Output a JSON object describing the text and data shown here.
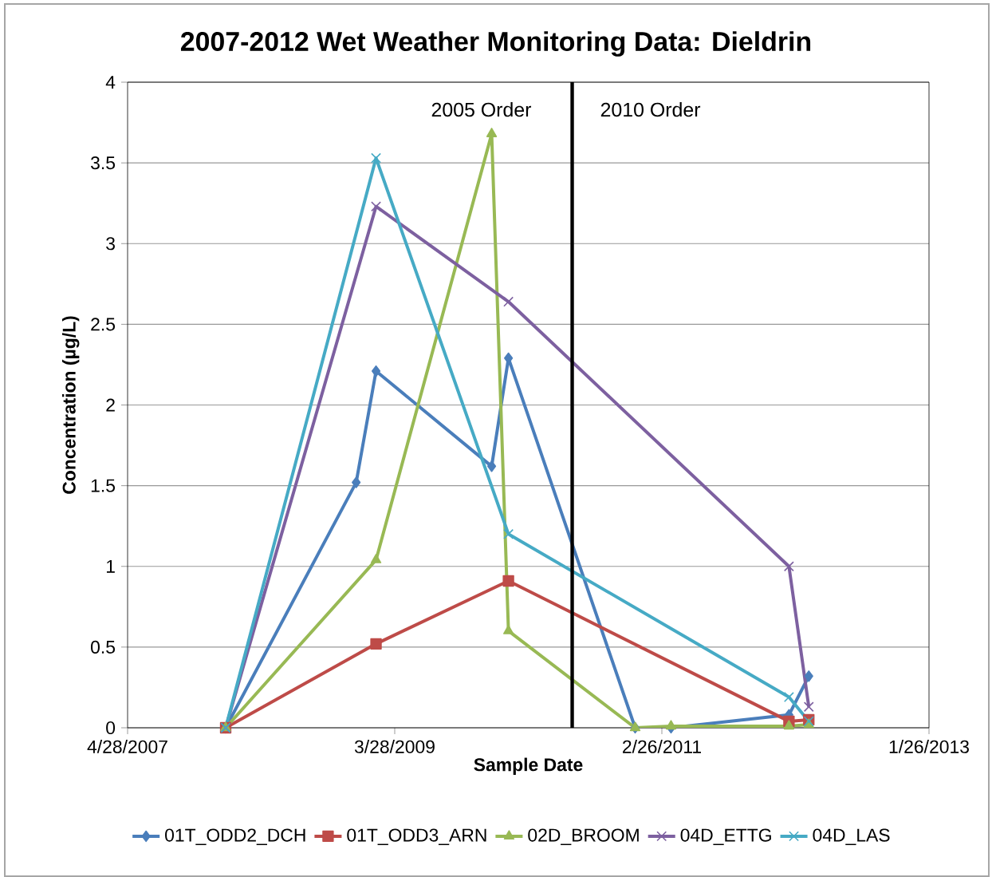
{
  "chart_data": {
    "type": "line",
    "title": "2007-2012 Wet Weather Monitoring Data: Dieldrin",
    "xlabel": "Sample Date",
    "ylabel": "Concentration (µg/L)",
    "xlim": [
      "2007-04-28",
      "2013-01-26"
    ],
    "xticks": [
      {
        "value": "2007-04-28",
        "label": "4/28/2007"
      },
      {
        "value": "2009-03-28",
        "label": "3/28/2009"
      },
      {
        "value": "2011-02-26",
        "label": "2/26/2011"
      },
      {
        "value": "2013-01-26",
        "label": "1/26/2013"
      }
    ],
    "ylim": [
      0,
      4
    ],
    "yticks": [
      0,
      0.5,
      1,
      1.5,
      2,
      2.5,
      3,
      3.5,
      4
    ],
    "grid": "y",
    "legend": "bottom",
    "ref_lines": [
      {
        "axis": "x",
        "value": "2010-07-06",
        "color": "#000000"
      }
    ],
    "annotations": [
      "2005 Order",
      "2010 Order"
    ],
    "series": [
      {
        "name": "01T_ODD2_DCH",
        "color": "#4a7ebb",
        "marker": "diamond",
        "x": [
          "2008-01-10",
          "2008-12-17",
          "2009-02-07",
          "2009-12-07",
          "2010-01-20",
          "2010-12-18",
          "2011-03-22",
          "2012-01-25",
          "2012-03-17"
        ],
        "values": [
          0,
          1.52,
          2.21,
          1.62,
          2.29,
          0,
          0,
          0.08,
          0.32
        ]
      },
      {
        "name": "01T_ODD3_ARN",
        "color": "#be4b48",
        "marker": "square",
        "x": [
          "2008-01-10",
          "2009-02-07",
          "2010-01-20",
          "2012-01-25",
          "2012-03-17"
        ],
        "values": [
          0,
          0.52,
          0.91,
          0.04,
          0.05
        ]
      },
      {
        "name": "02D_BROOM",
        "color": "#98b954",
        "marker": "triangle",
        "x": [
          "2008-01-10",
          "2009-02-07",
          "2009-12-07",
          "2010-01-20",
          "2010-12-18",
          "2011-03-22",
          "2012-01-25",
          "2012-03-17"
        ],
        "values": [
          0,
          1.04,
          3.68,
          0.6,
          0,
          0.01,
          0.01,
          0.02
        ]
      },
      {
        "name": "04D_ETTG",
        "color": "#7d60a0",
        "marker": "cross",
        "x": [
          "2008-01-10",
          "2009-02-07",
          "2010-01-20",
          "2012-01-25",
          "2012-03-17"
        ],
        "values": [
          0,
          3.23,
          2.64,
          1.0,
          0.13
        ]
      },
      {
        "name": "04D_LAS",
        "color": "#46aac5",
        "marker": "cross",
        "x": [
          "2008-01-10",
          "2009-02-07",
          "2010-01-20",
          "2012-01-25",
          "2012-03-17"
        ],
        "values": [
          0,
          3.53,
          1.2,
          0.19,
          0.04
        ]
      }
    ]
  }
}
